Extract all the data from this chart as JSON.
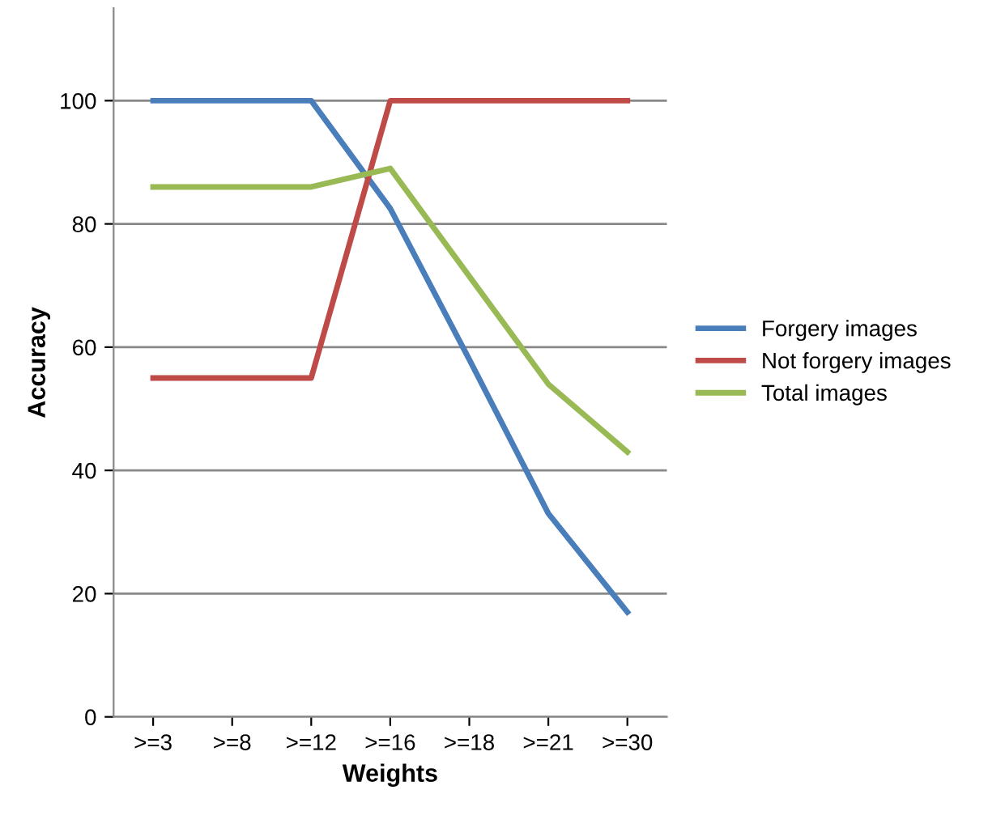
{
  "chart_data": {
    "type": "line",
    "xlabel": "Weights",
    "ylabel": "Accuracy",
    "categories": [
      ">=3",
      ">=8",
      ">=12",
      ">=16",
      ">=18",
      ">=21",
      ">=30"
    ],
    "series": [
      {
        "name": "Forgery images",
        "color": "#4a7ebb",
        "values": [
          100,
          100,
          100,
          82.5,
          58,
          33,
          17
        ]
      },
      {
        "name": "Not forgery images",
        "color": "#be4b48",
        "values": [
          55,
          55,
          55,
          100,
          100,
          100,
          100
        ]
      },
      {
        "name": "Total images",
        "color": "#98b954",
        "values": [
          86,
          86,
          86,
          89,
          71.5,
          54,
          43
        ]
      }
    ],
    "ylim": [
      0,
      115
    ],
    "yticks": [
      0,
      20,
      40,
      60,
      80,
      100
    ],
    "grid": "y",
    "legend": "right",
    "marker": "none",
    "line_style": "solid"
  }
}
